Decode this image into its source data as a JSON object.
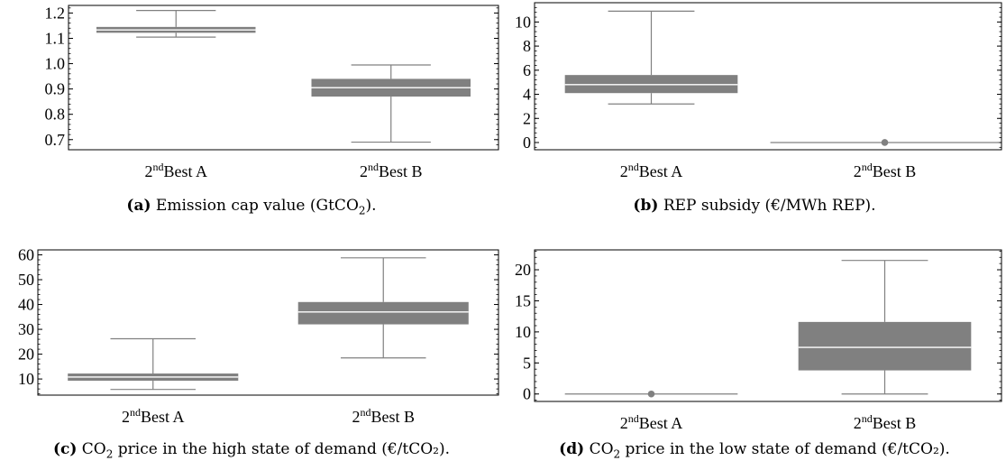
{
  "chart_data": [
    {
      "id": "a",
      "type": "box",
      "caption_letter": "(a)",
      "caption_pre": "Emission cap value (GtCO",
      "caption_sub": "2",
      "caption_post": ").",
      "categories": [
        {
          "sup": "nd",
          "rest": "Best A"
        },
        {
          "sup": "nd",
          "rest": "Best B"
        }
      ],
      "category_prefix": "2",
      "ylim": [
        0.66,
        1.23
      ],
      "yticks": [
        0.7,
        0.8,
        0.9,
        1.0,
        1.1,
        1.2
      ],
      "ytick_labels": [
        "0.7",
        "0.8",
        "0.9",
        "1.0",
        "1.1",
        "1.2"
      ],
      "boxes": [
        {
          "min": 1.105,
          "q1": 1.122,
          "median": 1.133,
          "q3": 1.145,
          "max": 1.21
        },
        {
          "min": 0.69,
          "q1": 0.87,
          "median": 0.905,
          "q3": 0.94,
          "max": 0.995
        }
      ]
    },
    {
      "id": "b",
      "type": "box",
      "caption_letter": "(b)",
      "caption_pre": "REP subsidy (€/MWh REP).",
      "caption_sub": "",
      "caption_post": "",
      "categories": [
        {
          "sup": "nd",
          "rest": "Best A"
        },
        {
          "sup": "nd",
          "rest": "Best B"
        }
      ],
      "category_prefix": "2",
      "ylim": [
        -0.6,
        11.6
      ],
      "yticks": [
        0,
        2,
        4,
        6,
        8,
        10
      ],
      "ytick_labels": [
        "0",
        "2",
        "4",
        "6",
        "8",
        "10"
      ],
      "boxes": [
        {
          "min": 3.2,
          "q1": 4.1,
          "median": 4.8,
          "q3": 5.6,
          "max": 10.9
        },
        {
          "min": 0,
          "q1": 0,
          "median": 0,
          "q3": 0,
          "max": 0,
          "outlier": 0
        }
      ]
    },
    {
      "id": "c",
      "type": "box",
      "caption_letter": "(c)",
      "caption_pre": "CO",
      "caption_sub": "2",
      "caption_post": " price in the high state of demand (€/tCO₂).",
      "categories": [
        {
          "sup": "nd",
          "rest": "Best A"
        },
        {
          "sup": "nd",
          "rest": "Best B"
        }
      ],
      "category_prefix": "2",
      "ylim": [
        3.5,
        62
      ],
      "yticks": [
        10,
        20,
        30,
        40,
        50,
        60
      ],
      "ytick_labels": [
        "10",
        "20",
        "30",
        "40",
        "50",
        "60"
      ],
      "boxes": [
        {
          "min": 5.8,
          "q1": 9.3,
          "median": 10.8,
          "q3": 12.2,
          "max": 26.2
        },
        {
          "min": 18.5,
          "q1": 32.0,
          "median": 37.0,
          "q3": 41.0,
          "max": 58.8
        }
      ]
    },
    {
      "id": "d",
      "type": "box",
      "caption_letter": "(d)",
      "caption_pre": "CO",
      "caption_sub": "2",
      "caption_post": " price in the low state of demand (€/tCO₂).",
      "categories": [
        {
          "sup": "nd",
          "rest": "Best A"
        },
        {
          "sup": "nd",
          "rest": "Best B"
        }
      ],
      "category_prefix": "2",
      "ylim": [
        -1.2,
        23.2
      ],
      "yticks": [
        0,
        5,
        10,
        15,
        20
      ],
      "ytick_labels": [
        "0",
        "5",
        "10",
        "15",
        "20"
      ],
      "boxes": [
        {
          "min": 0,
          "q1": 0,
          "median": 0,
          "q3": 0,
          "max": 0,
          "outlier": 0
        },
        {
          "min": 0,
          "q1": 3.8,
          "median": 7.5,
          "q3": 11.6,
          "max": 21.5
        }
      ]
    }
  ],
  "style": {
    "box_color": "#808080",
    "median_color": "#ffffff",
    "axis_color": "#000000"
  }
}
